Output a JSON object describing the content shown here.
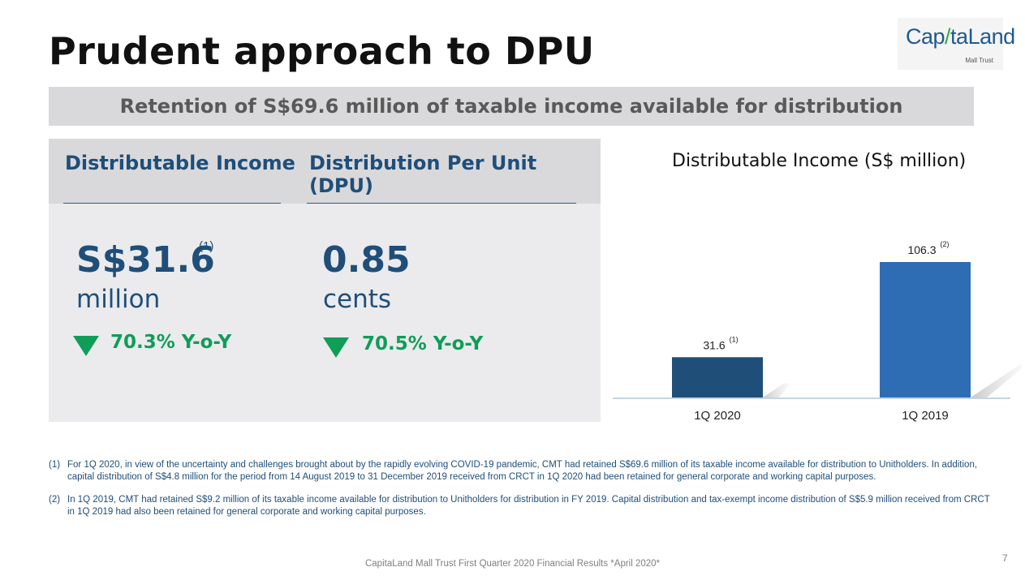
{
  "slide": {
    "title": "Prudent approach to DPU",
    "banner": "Retention of S$69.6 million of taxable income available for distribution",
    "page_number": "7",
    "footer": "CapitaLand Mall Trust First Quarter 2020 Financial Results *April 2020*"
  },
  "logo": {
    "name_part1": "Cap",
    "name_slash": "/",
    "name_part2": "taLand",
    "subtitle": "Mall Trust"
  },
  "metrics": [
    {
      "heading": "Distributable Income",
      "value": "S$31.6",
      "note_ref": "(1)",
      "unit": "million",
      "change": "70.3% Y-o-Y",
      "change_direction": "down"
    },
    {
      "heading": "Distribution Per Unit (DPU)",
      "value": "0.85",
      "note_ref": "",
      "unit": "cents",
      "change": "70.5% Y-o-Y",
      "change_direction": "down"
    }
  ],
  "colors": {
    "heading_blue": "#1f4e79",
    "positive_green": "#0f9d58",
    "bar_dark": "#1f4e79",
    "bar_light": "#2e6db4",
    "panel_grey": "#ebebed"
  },
  "chart_data": {
    "type": "bar",
    "title": "Distributable Income (S$ million)",
    "categories": [
      "1Q 2020",
      "1Q 2019"
    ],
    "values": [
      31.6,
      106.3
    ],
    "data_labels": [
      "31.6",
      "106.3"
    ],
    "data_label_notes": [
      "(1)",
      "(2)"
    ],
    "bar_colors": [
      "#1f4e79",
      "#2e6db4"
    ],
    "ylim": [
      0,
      106.3
    ],
    "grid": false,
    "legend": "none"
  },
  "footnotes": [
    {
      "marker": "(1)",
      "text": "For 1Q 2020, in view of the uncertainty and challenges brought about by the rapidly evolving COVID-19 pandemic, CMT had retained S$69.6 million of its taxable income available for distribution to Unitholders. In addition, capital distribution of S$4.8 million for the period from 14 August 2019 to 31 December 2019 received from CRCT in 1Q 2020 had been retained for general corporate and working capital purposes."
    },
    {
      "marker": "(2)",
      "text": "In 1Q 2019, CMT had retained S$9.2 million of its taxable income available for distribution to Unitholders for distribution in FY 2019. Capital distribution and tax-exempt income distribution of S$5.9 million received from CRCT in 1Q 2019 had also been retained for general corporate and working capital purposes."
    }
  ]
}
